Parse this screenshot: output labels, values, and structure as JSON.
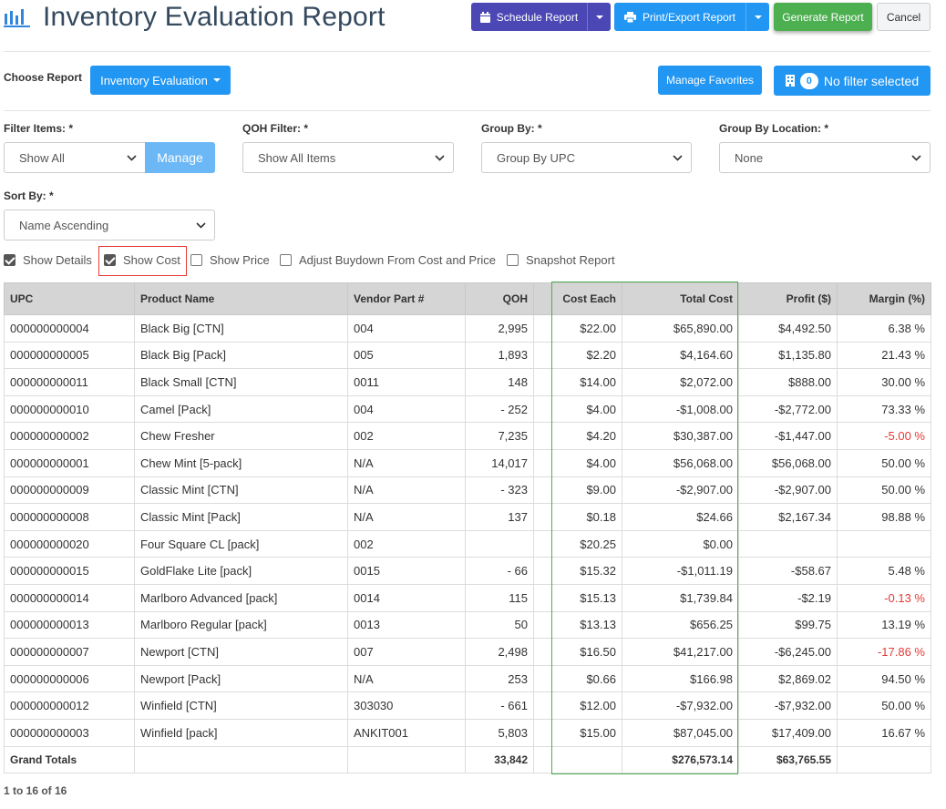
{
  "header": {
    "title": "Inventory Evaluation Report",
    "schedule_label": "Schedule Report",
    "print_label": "Print/Export Report",
    "generate_label": "Generate Report",
    "cancel_label": "Cancel"
  },
  "report": {
    "choose_label": "Choose Report",
    "selected_report": "Inventory Evaluation",
    "favorites_label": "Manage Favorites",
    "filter_count": "0",
    "filter_text": "No filter selected"
  },
  "filters": {
    "filter_items_label": "Filter Items: *",
    "filter_items_value": "Show All",
    "manage_label": "Manage",
    "qoh_label": "QOH Filter: *",
    "qoh_value": "Show All Items",
    "group_by_label": "Group By: *",
    "group_by_value": "Group By UPC",
    "group_loc_label": "Group By Location: *",
    "group_loc_value": "None",
    "sort_label": "Sort By: *",
    "sort_value": "Name Ascending"
  },
  "options": [
    {
      "label": "Show Details",
      "checked": true
    },
    {
      "label": "Show Cost",
      "checked": true
    },
    {
      "label": "Show Price",
      "checked": false
    },
    {
      "label": "Adjust Buydown From Cost and Price",
      "checked": false
    },
    {
      "label": "Snapshot Report",
      "checked": false
    }
  ],
  "table": {
    "columns": [
      "UPC",
      "Product Name",
      "Vendor Part #",
      "QOH",
      "",
      "Cost Each",
      "Total Cost",
      "Profit ($)",
      "Margin (%)"
    ],
    "rows": [
      [
        "000000000004",
        "Black Big [CTN]",
        "004",
        "2,995",
        "",
        "$22.00",
        "$65,890.00",
        "$4,492.50",
        "6.38 %"
      ],
      [
        "000000000005",
        "Black Big [Pack]",
        "005",
        "1,893",
        "",
        "$2.20",
        "$4,164.60",
        "$1,135.80",
        "21.43 %"
      ],
      [
        "000000000011",
        "Black Small [CTN]",
        "0011",
        "148",
        "",
        "$14.00",
        "$2,072.00",
        "$888.00",
        "30.00 %"
      ],
      [
        "000000000010",
        "Camel [Pack]",
        "004",
        "- 252",
        "",
        "$4.00",
        "-$1,008.00",
        "-$2,772.00",
        "73.33 %"
      ],
      [
        "000000000002",
        "Chew Fresher",
        "002",
        "7,235",
        "",
        "$4.20",
        "$30,387.00",
        "-$1,447.00",
        "-5.00 %"
      ],
      [
        "000000000001",
        "Chew Mint [5-pack]",
        "N/A",
        "14,017",
        "",
        "$4.00",
        "$56,068.00",
        "$56,068.00",
        "50.00 %"
      ],
      [
        "000000000009",
        "Classic Mint [CTN]",
        "N/A",
        "- 323",
        "",
        "$9.00",
        "-$2,907.00",
        "-$2,907.00",
        "50.00 %"
      ],
      [
        "000000000008",
        "Classic Mint [Pack]",
        "N/A",
        "137",
        "",
        "$0.18",
        "$24.66",
        "$2,167.34",
        "98.88 %"
      ],
      [
        "000000000020",
        "Four Square CL [pack]",
        "002",
        "",
        "",
        "$20.25",
        "$0.00",
        "",
        ""
      ],
      [
        "000000000015",
        "GoldFlake Lite [pack]",
        "0015",
        "- 66",
        "",
        "$15.32",
        "-$1,011.19",
        "-$58.67",
        "5.48 %"
      ],
      [
        "000000000014",
        "Marlboro Advanced [pack]",
        "0014",
        "115",
        "",
        "$15.13",
        "$1,739.84",
        "-$2.19",
        "-0.13 %"
      ],
      [
        "000000000013",
        "Marlboro Regular [pack]",
        "0013",
        "50",
        "",
        "$13.13",
        "$656.25",
        "$99.75",
        "13.19 %"
      ],
      [
        "000000000007",
        "Newport [CTN]",
        "007",
        "2,498",
        "",
        "$16.50",
        "$41,217.00",
        "-$6,245.00",
        "-17.86 %"
      ],
      [
        "000000000006",
        "Newport [Pack]",
        "N/A",
        "253",
        "",
        "$0.66",
        "$166.98",
        "$2,869.02",
        "94.50 %"
      ],
      [
        "000000000012",
        "Winfield [CTN]",
        "303030",
        "- 661",
        "",
        "$12.00",
        "-$7,932.00",
        "-$7,932.00",
        "50.00 %"
      ],
      [
        "000000000003",
        "Winfield [pack]",
        "ANKIT001",
        "5,803",
        "",
        "$15.00",
        "$87,045.00",
        "$17,409.00",
        "16.67 %"
      ]
    ],
    "totals": [
      "Grand Totals",
      "",
      "",
      "33,842",
      "",
      "",
      "$276,573.14",
      "$63,765.55",
      ""
    ]
  },
  "pager": "1 to 16 of 16",
  "colors": {
    "schedule": "#4b47b5",
    "primary": "#2196f3",
    "generate": "#4caf50",
    "negative_margin": "#e53935",
    "cost_highlight": "#4caf50",
    "show_cost_highlight": "#e53935"
  }
}
